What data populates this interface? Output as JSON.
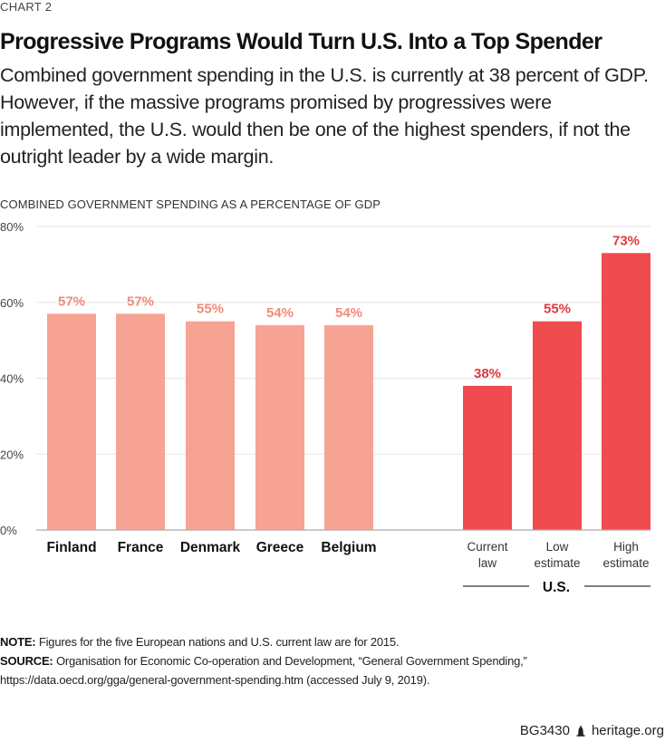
{
  "header": {
    "chart_number": "CHART 2",
    "title": "Progressive Programs Would Turn U.S. Into a Top Spender",
    "subtitle": "Combined government spending in the U.S. is currently at 38 percent of GDP. However, if the massive programs promised by progressives were implemented, the U.S. would then be one of the highest spenders, if not the outright leader by a wide margin."
  },
  "chart_data": {
    "type": "bar",
    "title": "COMBINED GOVERNMENT SPENDING AS A PERCENTAGE OF GDP",
    "xlabel": "",
    "ylabel": "",
    "ylim": [
      0,
      80
    ],
    "yticks": [
      0,
      20,
      40,
      60,
      80
    ],
    "ytick_labels": [
      "0%",
      "20%",
      "40%",
      "60%",
      "80%"
    ],
    "grid": true,
    "legend": "none",
    "groups": [
      {
        "name": "",
        "color": "#f7a394",
        "label_color": "#f08a78",
        "categories": [
          "Finland",
          "France",
          "Denmark",
          "Greece",
          "Belgium"
        ],
        "values": [
          57,
          57,
          55,
          54,
          54
        ],
        "labels": [
          "57%",
          "57%",
          "55%",
          "54%",
          "54%"
        ]
      },
      {
        "name": "U.S.",
        "color": "#f04b4f",
        "label_color": "#e03a3e",
        "categories": [
          [
            "Current",
            "law"
          ],
          [
            "Low",
            "estimate"
          ],
          [
            "High",
            "estimate"
          ]
        ],
        "values": [
          38,
          55,
          73
        ],
        "labels": [
          "38%",
          "55%",
          "73%"
        ]
      }
    ]
  },
  "notes": {
    "note_label": "NOTE:",
    "note_text": " Figures for the five European nations and U.S. current law are for 2015.",
    "source_label": "SOURCE:",
    "source_text": " Organisation for Economic Co-operation and Development, “General Government Spending,”",
    "source_line2": "https://data.oecd.org/gga/general-government-spending.htm (accessed July 9, 2019)."
  },
  "footer": {
    "report_id": "BG3430",
    "icon": "liberty-bell-icon",
    "site": "heritage.org"
  }
}
